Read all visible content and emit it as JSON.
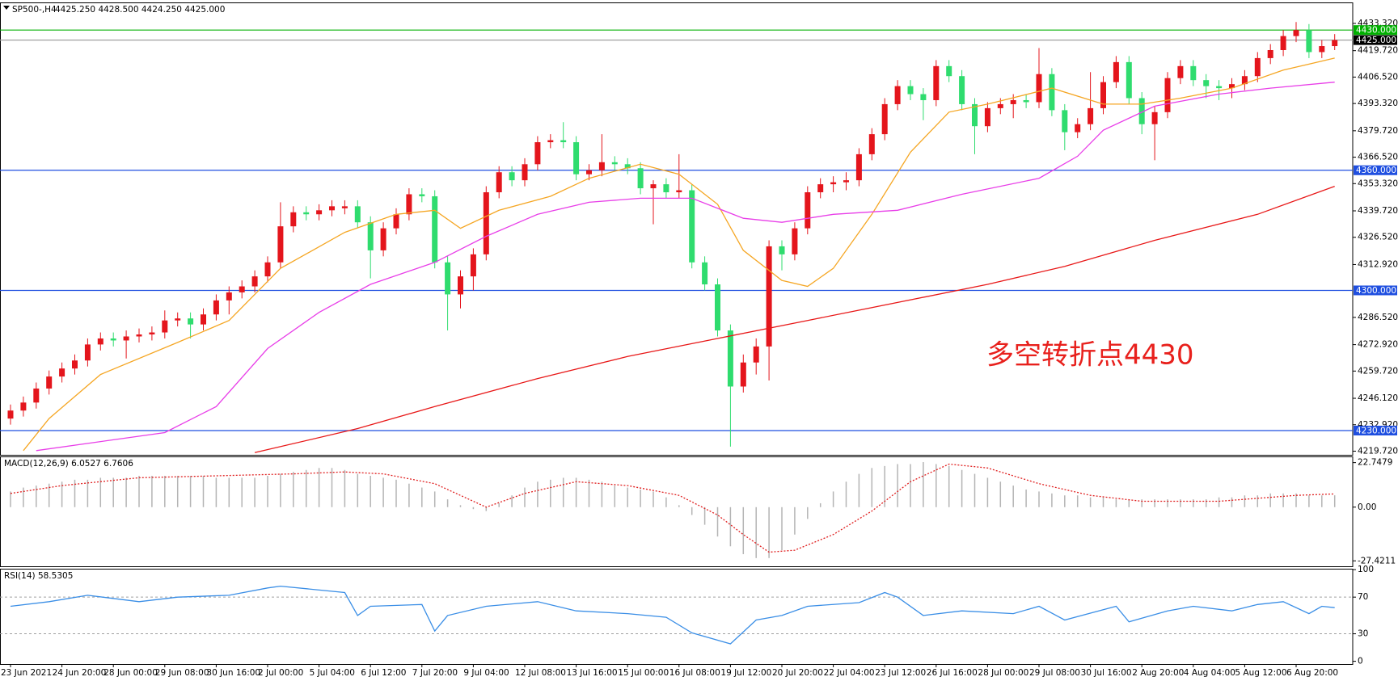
{
  "chart_data": [
    {
      "type": "candlestick",
      "title": "SP500-,H4",
      "subtitle": "4425.250 4428.500 4424.250 4425.000",
      "annotation": "多空转折点4430",
      "annotation_color": "#e8201c",
      "up_color": "#e4151c",
      "down_color": "#2fdc6e",
      "ylim": [
        4217.9,
        4443.8
      ],
      "yticks": [
        {
          "value": 4433.32,
          "label": "4433.320"
        },
        {
          "value": 4419.72,
          "label": "4419.720"
        },
        {
          "value": 4406.52,
          "label": "4406.520"
        },
        {
          "value": 4393.32,
          "label": "4393.320"
        },
        {
          "value": 4379.72,
          "label": "4379.720"
        },
        {
          "value": 4366.52,
          "label": "4366.520"
        },
        {
          "value": 4353.32,
          "label": "4353.320"
        },
        {
          "value": 4339.72,
          "label": "4339.720"
        },
        {
          "value": 4326.52,
          "label": "4326.520"
        },
        {
          "value": 4312.92,
          "label": "4312.920"
        },
        {
          "value": 4286.52,
          "label": "4286.520"
        },
        {
          "value": 4272.92,
          "label": "4272.920"
        },
        {
          "value": 4259.72,
          "label": "4259.720"
        },
        {
          "value": 4246.12,
          "label": "4246.120"
        },
        {
          "value": 4232.92,
          "label": "4232.920"
        },
        {
          "value": 4219.72,
          "label": "4219.720"
        }
      ],
      "candles": [
        [
          4236,
          4243,
          4233,
          4240
        ],
        [
          4240,
          4247,
          4237,
          4244
        ],
        [
          4244,
          4254,
          4241,
          4251
        ],
        [
          4251,
          4260,
          4248,
          4257
        ],
        [
          4257,
          4264,
          4254,
          4261
        ],
        [
          4261,
          4268,
          4258,
          4265
        ],
        [
          4265,
          4276,
          4262,
          4273
        ],
        [
          4273,
          4279,
          4270,
          4276
        ],
        [
          4276,
          4279,
          4272,
          4275
        ],
        [
          4275,
          4280,
          4266,
          4277
        ],
        [
          4277,
          4281,
          4274,
          4278
        ],
        [
          4278,
          4282,
          4275,
          4279
        ],
        [
          4279,
          4290,
          4276,
          4285
        ],
        [
          4285,
          4289,
          4282,
          4286
        ],
        [
          4286,
          4289,
          4276,
          4283
        ],
        [
          4283,
          4291,
          4280,
          4288
        ],
        [
          4288,
          4298,
          4285,
          4295
        ],
        [
          4295,
          4302,
          4288,
          4299
        ],
        [
          4299,
          4305,
          4296,
          4302
        ],
        [
          4302,
          4310,
          4299,
          4307
        ],
        [
          4307,
          4317,
          4304,
          4314
        ],
        [
          4314,
          4344,
          4311,
          4332
        ],
        [
          4332,
          4342,
          4329,
          4339
        ],
        [
          4339,
          4342,
          4335,
          4338
        ],
        [
          4338,
          4343,
          4335,
          4340
        ],
        [
          4340,
          4345,
          4337,
          4342
        ],
        [
          4341,
          4345,
          4338,
          4342
        ],
        [
          4342,
          4345,
          4331,
          4334
        ],
        [
          4334,
          4337,
          4306,
          4320
        ],
        [
          4320,
          4334,
          4317,
          4331
        ],
        [
          4331,
          4341,
          4328,
          4338
        ],
        [
          4338,
          4351,
          4335,
          4348
        ],
        [
          4348,
          4351,
          4344,
          4347
        ],
        [
          4347,
          4350,
          4311,
          4314
        ],
        [
          4314,
          4317,
          4280,
          4298
        ],
        [
          4298,
          4310,
          4291,
          4307
        ],
        [
          4307,
          4321,
          4300,
          4318
        ],
        [
          4318,
          4352,
          4315,
          4349
        ],
        [
          4349,
          4362,
          4346,
          4359
        ],
        [
          4359,
          4362,
          4352,
          4355
        ],
        [
          4355,
          4366,
          4352,
          4363
        ],
        [
          4363,
          4377,
          4360,
          4374
        ],
        [
          4374,
          4378,
          4371,
          4375
        ],
        [
          4375,
          4384,
          4371,
          4374
        ],
        [
          4374,
          4377,
          4355,
          4358
        ],
        [
          4358,
          4363,
          4355,
          4360
        ],
        [
          4360,
          4378,
          4357,
          4364
        ],
        [
          4364,
          4367,
          4360,
          4363
        ],
        [
          4363,
          4366,
          4358,
          4361
        ],
        [
          4361,
          4364,
          4348,
          4351
        ],
        [
          4351,
          4355,
          4333,
          4353
        ],
        [
          4353,
          4356,
          4346,
          4349
        ],
        [
          4349,
          4368,
          4346,
          4350
        ],
        [
          4350,
          4353,
          4311,
          4314
        ],
        [
          4314,
          4317,
          4300,
          4303
        ],
        [
          4303,
          4306,
          4277,
          4280
        ],
        [
          4280,
          4283,
          4222,
          4252
        ],
        [
          4252,
          4268,
          4249,
          4264
        ],
        [
          4264,
          4276,
          4258,
          4272
        ],
        [
          4272,
          4325,
          4255,
          4322
        ],
        [
          4322,
          4325,
          4310,
          4318
        ],
        [
          4318,
          4334,
          4315,
          4331
        ],
        [
          4331,
          4352,
          4328,
          4349
        ],
        [
          4349,
          4356,
          4346,
          4353
        ],
        [
          4353,
          4357,
          4349,
          4354
        ],
        [
          4354,
          4359,
          4350,
          4355
        ],
        [
          4355,
          4371,
          4352,
          4368
        ],
        [
          4368,
          4381,
          4365,
          4378
        ],
        [
          4378,
          4396,
          4375,
          4393
        ],
        [
          4393,
          4405,
          4390,
          4402
        ],
        [
          4402,
          4405,
          4395,
          4398
        ],
        [
          4398,
          4401,
          4385,
          4395
        ],
        [
          4395,
          4415,
          4392,
          4412
        ],
        [
          4412,
          4415,
          4404,
          4407
        ],
        [
          4407,
          4410,
          4390,
          4393
        ],
        [
          4393,
          4396,
          4368,
          4382
        ],
        [
          4382,
          4394,
          4379,
          4391
        ],
        [
          4391,
          4396,
          4388,
          4393
        ],
        [
          4393,
          4398,
          4386,
          4395
        ],
        [
          4395,
          4398,
          4391,
          4394
        ],
        [
          4394,
          4421,
          4391,
          4408
        ],
        [
          4408,
          4411,
          4387,
          4390
        ],
        [
          4390,
          4393,
          4370,
          4379
        ],
        [
          4379,
          4386,
          4376,
          4383
        ],
        [
          4383,
          4409,
          4380,
          4391
        ],
        [
          4391,
          4407,
          4388,
          4404
        ],
        [
          4404,
          4417,
          4401,
          4414
        ],
        [
          4414,
          4417,
          4393,
          4396
        ],
        [
          4396,
          4399,
          4378,
          4383
        ],
        [
          4383,
          4392,
          4365,
          4389
        ],
        [
          4389,
          4409,
          4386,
          4406
        ],
        [
          4406,
          4415,
          4403,
          4412
        ],
        [
          4412,
          4415,
          4402,
          4405
        ],
        [
          4405,
          4408,
          4396,
          4402
        ],
        [
          4402,
          4405,
          4395,
          4401
        ],
        [
          4401,
          4406,
          4396,
          4403
        ],
        [
          4403,
          4410,
          4400,
          4407
        ],
        [
          4407,
          4419,
          4404,
          4416
        ],
        [
          4416,
          4423,
          4413,
          4420
        ],
        [
          4420,
          4430,
          4417,
          4427
        ],
        [
          4427,
          4434,
          4424,
          4430
        ],
        [
          4430,
          4433,
          4416,
          4419
        ],
        [
          4419,
          4425,
          4416,
          4422
        ],
        [
          4422,
          4428,
          4420,
          4425
        ]
      ],
      "lines": [
        {
          "color": "#f5a623",
          "x": [
            1,
            3,
            7,
            13,
            17,
            21,
            26,
            30,
            33,
            35,
            38,
            42,
            45,
            49,
            52,
            55,
            57,
            60,
            62,
            64,
            67,
            70,
            73,
            76,
            81,
            85,
            88,
            91,
            95,
            99,
            101,
            103
          ],
          "values": [
            4220,
            4236,
            4258,
            4274,
            4285,
            4311,
            4329,
            4338,
            4340,
            4331,
            4340,
            4347,
            4356,
            4363,
            4358,
            4343,
            4320,
            4305,
            4302,
            4311,
            4338,
            4369,
            4389,
            4393,
            4401,
            4393,
            4393,
            4396,
            4401,
            4410,
            4413,
            4416
          ]
        },
        {
          "color": "#e83ee8",
          "x": [
            2,
            12,
            16,
            20,
            24,
            28,
            33,
            37,
            41,
            45,
            49,
            53,
            57,
            60,
            64,
            69,
            74,
            80,
            83,
            85,
            89,
            94,
            98,
            103
          ],
          "values": [
            4220,
            4229,
            4242,
            4271,
            4289,
            4303,
            4314,
            4327,
            4338,
            4344,
            4346,
            4346,
            4336,
            4334,
            4338,
            4340,
            4348,
            4356,
            4367,
            4380,
            4392,
            4398,
            4401,
            4404
          ]
        },
        {
          "color": "#e81818",
          "x": [
            19,
            27,
            33,
            41,
            48,
            55,
            62,
            69,
            76,
            82,
            89,
            97,
            103
          ],
          "values": [
            4219,
            4231,
            4242,
            4256,
            4267,
            4276,
            4285,
            4294,
            4303,
            4312,
            4325,
            4338,
            4352
          ]
        }
      ],
      "levels": [
        {
          "value": 4430,
          "label": "4430.000",
          "color": "#00b000"
        },
        {
          "value": 4425,
          "label": "4425.000",
          "color": "#a0a0a0",
          "box": "#000000"
        },
        {
          "value": 4360,
          "label": "4360.000",
          "color": "#1f4fe0"
        },
        {
          "value": 4300,
          "label": "4300.000",
          "color": "#1f4fe0"
        },
        {
          "value": 4230,
          "label": "4230.000",
          "color": "#1f4fe0"
        }
      ]
    },
    {
      "type": "macd",
      "title": "MACD(12,26,9) 6.0527 6.7606",
      "hist_color": "#b4b4b4",
      "ylim": [
        -30.2,
        25.9
      ],
      "yticks": [
        22.7479,
        {
          "value": 0,
          "label": "0.00"
        },
        -27.4211
      ],
      "histogram": [
        8,
        10,
        11,
        12,
        13,
        14,
        14,
        15,
        15,
        15,
        16,
        16,
        16,
        16,
        16,
        16,
        15,
        15,
        15,
        15,
        16,
        17,
        18,
        19,
        20,
        20,
        19,
        17,
        16,
        15,
        14,
        12,
        10,
        8,
        4,
        1,
        -1,
        -2,
        2,
        6,
        10,
        13,
        14,
        15,
        15,
        14,
        13,
        11,
        10,
        9,
        8,
        5,
        1,
        -4,
        -9,
        -15,
        -20,
        -24,
        -26,
        -26,
        -22,
        -14,
        -6,
        2,
        8,
        13,
        17,
        20,
        21,
        22,
        22,
        23,
        22,
        21,
        19,
        17,
        15,
        13,
        11,
        9,
        8,
        7,
        6,
        6,
        5,
        5,
        4,
        4,
        4,
        4,
        4,
        4,
        4,
        4,
        5,
        5,
        6,
        6,
        7,
        7,
        7,
        6,
        6,
        6.0527
      ],
      "signal": {
        "color": "#e02020",
        "x": [
          0,
          4,
          10,
          16,
          22,
          26,
          29,
          33,
          37,
          40,
          44,
          48,
          52,
          55,
          57,
          59,
          61,
          64,
          67,
          70,
          73,
          76,
          80,
          84,
          88,
          94,
          100,
          103
        ],
        "values": [
          7,
          11,
          15,
          16,
          17,
          18,
          17,
          12,
          0,
          7,
          13,
          11,
          6,
          -4,
          -14,
          -23,
          -22,
          -14,
          -2,
          13,
          22,
          20,
          12,
          6,
          3,
          3,
          6,
          6.7606
        ]
      }
    },
    {
      "type": "line",
      "title": "RSI(14) 58.5305",
      "ylim": [
        -3,
        101
      ],
      "yticks": [
        100,
        70,
        30,
        0
      ],
      "levels": [
        30,
        70
      ],
      "level_color": "#a0a0a0",
      "series": [
        {
          "color": "#3a8ee6",
          "x": [
            0,
            3,
            6,
            10,
            13,
            17,
            20,
            21,
            26,
            27,
            28,
            32,
            33,
            34,
            37,
            41,
            44,
            48,
            51,
            53,
            56,
            58,
            60,
            62,
            66,
            68,
            69,
            71,
            74,
            78,
            80,
            82,
            86,
            87,
            90,
            92,
            95,
            97,
            99,
            101,
            102,
            103
          ],
          "values": [
            60,
            65,
            72,
            65,
            70,
            72,
            80,
            82,
            75,
            50,
            60,
            62,
            33,
            50,
            60,
            65,
            55,
            52,
            48,
            31,
            19,
            45,
            50,
            60,
            64,
            75,
            70,
            50,
            55,
            52,
            60,
            45,
            60,
            43,
            55,
            60,
            55,
            62,
            65,
            52,
            60,
            58.5305
          ]
        }
      ],
      "xticks": [
        {
          "value": 0,
          "label": "23 Jun 2021"
        },
        {
          "value": 4,
          "label": "24 Jun 20:00"
        },
        {
          "value": 8,
          "label": "28 Jun 00:00"
        },
        {
          "value": 12,
          "label": "29 Jun 08:00"
        },
        {
          "value": 16,
          "label": "30 Jun 16:00"
        },
        {
          "value": 20,
          "label": "2 Jul 00:00"
        },
        {
          "value": 24,
          "label": "5 Jul 04:00"
        },
        {
          "value": 28,
          "label": "6 Jul 12:00"
        },
        {
          "value": 32,
          "label": "7 Jul 20:00"
        },
        {
          "value": 36,
          "label": "9 Jul 04:00"
        },
        {
          "value": 40,
          "label": "12 Jul 08:00"
        },
        {
          "value": 44,
          "label": "13 Jul 16:00"
        },
        {
          "value": 48,
          "label": "15 Jul 00:00"
        },
        {
          "value": 52,
          "label": "16 Jul 08:00"
        },
        {
          "value": 56,
          "label": "19 Jul 12:00"
        },
        {
          "value": 60,
          "label": "20 Jul 20:00"
        },
        {
          "value": 64,
          "label": "22 Jul 04:00"
        },
        {
          "value": 68,
          "label": "23 Jul 12:00"
        },
        {
          "value": 72,
          "label": "26 Jul 16:00"
        },
        {
          "value": 76,
          "label": "28 Jul 00:00"
        },
        {
          "value": 80,
          "label": "29 Jul 08:00"
        },
        {
          "value": 84,
          "label": "30 Jul 16:00"
        },
        {
          "value": 88,
          "label": "2 Aug 20:00"
        },
        {
          "value": 92,
          "label": "4 Aug 04:00"
        },
        {
          "value": 96,
          "label": "5 Aug 12:00"
        },
        {
          "value": 100,
          "label": "6 Aug 20:00"
        }
      ]
    }
  ]
}
